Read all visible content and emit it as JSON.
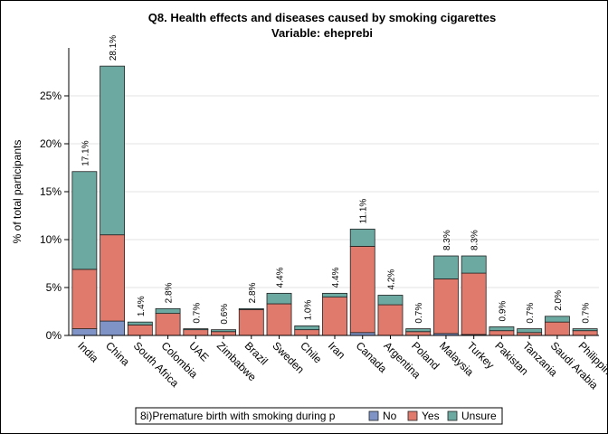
{
  "chart_data": {
    "type": "bar",
    "stacked": true,
    "title": "Q8. Health effects and diseases caused by smoking cigarettes",
    "subtitle": "Variable: eheprebi",
    "xlabel": "",
    "ylabel": "% of total participants",
    "ylim": [
      0,
      30
    ],
    "yticks": [
      "0%",
      "5%",
      "10%",
      "15%",
      "20%",
      "25%"
    ],
    "ytick_values": [
      0,
      5,
      10,
      15,
      20,
      25
    ],
    "grid": true,
    "legend_position": "bottom",
    "legend_title": "8i)Premature birth with smoking during p",
    "categories": [
      "India",
      "China",
      "South Africa",
      "Colombia",
      "UAE",
      "Zimbabwe",
      "Brazil",
      "Sweden",
      "Chile",
      "Iran",
      "Canada",
      "Argentina",
      "Poland",
      "Malaysia",
      "Turkey",
      "Pakistan",
      "Tanzania",
      "Saudi Arabia",
      "Philippines"
    ],
    "series": [
      {
        "name": "No",
        "color": "#7f93c7",
        "values": [
          0.7,
          1.5,
          0.0,
          0.0,
          0.0,
          0.0,
          0.0,
          0.0,
          0.0,
          0.0,
          0.3,
          0.0,
          0.0,
          0.2,
          0.1,
          0.0,
          0.0,
          0.0,
          0.0
        ]
      },
      {
        "name": "Yes",
        "color": "#e07a6c",
        "values": [
          6.2,
          9.0,
          1.1,
          2.3,
          0.6,
          0.4,
          2.7,
          3.3,
          0.6,
          4.0,
          9.0,
          3.2,
          0.4,
          5.7,
          6.4,
          0.5,
          0.3,
          1.4,
          0.5
        ]
      },
      {
        "name": "Unsure",
        "color": "#6ba9a1",
        "values": [
          10.2,
          17.6,
          0.3,
          0.5,
          0.1,
          0.2,
          0.1,
          1.1,
          0.4,
          0.4,
          1.8,
          1.0,
          0.3,
          2.4,
          1.8,
          0.4,
          0.4,
          0.6,
          0.2
        ]
      }
    ],
    "data_labels": [
      "17.1%",
      "28.1%",
      "1.4%",
      "2.8%",
      "0.7%",
      "0.6%",
      "2.8%",
      "4.4%",
      "1.0%",
      "4.4%",
      "11.1%",
      "4.2%",
      "0.7%",
      "8.3%",
      "8.3%",
      "0.9%",
      "0.7%",
      "2.0%",
      "0.7%"
    ],
    "totals": [
      17.1,
      28.1,
      1.4,
      2.8,
      0.7,
      0.6,
      2.8,
      4.4,
      1.0,
      4.4,
      11.1,
      4.2,
      0.7,
      8.3,
      8.3,
      0.9,
      0.7,
      2.0,
      0.7
    ]
  }
}
